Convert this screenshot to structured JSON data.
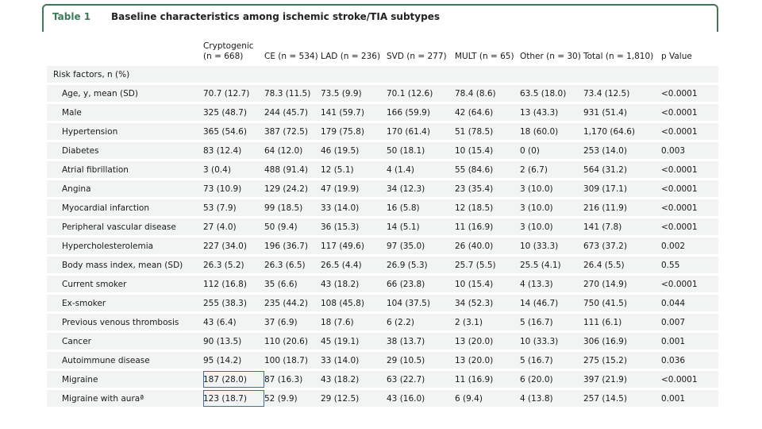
{
  "caption": {
    "label": "Table 1",
    "title": "Baseline characteristics among ischemic stroke/TIA subtypes"
  },
  "columns": [
    "",
    "Cryptogenic (n = 668)",
    "CE (n = 534)",
    "LAD (n = 236)",
    "SVD (n = 277)",
    "MULT (n = 65)",
    "Other (n = 30)",
    "Total (n = 1,810)",
    "p Value"
  ],
  "section_header": "Risk factors, n (%)",
  "rows": [
    [
      "Age, y, mean (SD)",
      "70.7 (12.7)",
      "78.3 (11.5)",
      "73.5 (9.9)",
      "70.1 (12.6)",
      "78.4 (8.6)",
      "63.5 (18.0)",
      "73.4 (12.5)",
      "<0.0001"
    ],
    [
      "Male",
      "325 (48.7)",
      "244 (45.7)",
      "141 (59.7)",
      "166 (59.9)",
      "42 (64.6)",
      "13 (43.3)",
      "931 (51.4)",
      "<0.0001"
    ],
    [
      "Hypertension",
      "365 (54.6)",
      "387 (72.5)",
      "179 (75.8)",
      "170 (61.4)",
      "51 (78.5)",
      "18 (60.0)",
      "1,170 (64.6)",
      "<0.0001"
    ],
    [
      "Diabetes",
      "83 (12.4)",
      "64 (12.0)",
      "46 (19.5)",
      "50 (18.1)",
      "10 (15.4)",
      "0 (0)",
      "253 (14.0)",
      "0.003"
    ],
    [
      "Atrial fibrillation",
      "3 (0.4)",
      "488 (91.4)",
      "12 (5.1)",
      "4 (1.4)",
      "55 (84.6)",
      "2 (6.7)",
      "564 (31.2)",
      "<0.0001"
    ],
    [
      "Angina",
      "73 (10.9)",
      "129 (24.2)",
      "47 (19.9)",
      "34 (12.3)",
      "23 (35.4)",
      "3 (10.0)",
      "309 (17.1)",
      "<0.0001"
    ],
    [
      "Myocardial infarction",
      "53 (7.9)",
      "99 (18.5)",
      "33 (14.0)",
      "16 (5.8)",
      "12 (18.5)",
      "3 (10.0)",
      "216 (11.9)",
      "<0.0001"
    ],
    [
      "Peripheral vascular disease",
      "27 (4.0)",
      "50 (9.4)",
      "36 (15.3)",
      "14 (5.1)",
      "11 (16.9)",
      "3 (10.0)",
      "141 (7.8)",
      "<0.0001"
    ],
    [
      "Hypercholesterolemia",
      "227 (34.0)",
      "196 (36.7)",
      "117 (49.6)",
      "97 (35.0)",
      "26 (40.0)",
      "10 (33.3)",
      "673 (37.2)",
      "0.002"
    ],
    [
      "Body mass index, mean (SD)",
      "26.3 (5.2)",
      "26.3 (6.5)",
      "26.5 (4.4)",
      "26.9 (5.3)",
      "25.7 (5.5)",
      "25.5 (4.1)",
      "26.4 (5.5)",
      "0.55"
    ],
    [
      "Current smoker",
      "112 (16.8)",
      "35 (6.6)",
      "43 (18.2)",
      "66 (23.8)",
      "10 (15.4)",
      "4 (13.3)",
      "270 (14.9)",
      "<0.0001"
    ],
    [
      "Ex-smoker",
      "255 (38.3)",
      "235 (44.2)",
      "108 (45.8)",
      "104 (37.5)",
      "34 (52.3)",
      "14 (46.7)",
      "750 (41.5)",
      "0.044"
    ],
    [
      "Previous venous thrombosis",
      "43 (6.4)",
      "37 (6.9)",
      "18 (7.6)",
      "6 (2.2)",
      "2 (3.1)",
      "5 (16.7)",
      "111 (6.1)",
      "0.007"
    ],
    [
      "Cancer",
      "90 (13.5)",
      "110 (20.6)",
      "45 (19.1)",
      "38 (13.7)",
      "13 (20.0)",
      "10 (33.3)",
      "306 (16.9)",
      "0.001"
    ],
    [
      "Autoimmune disease",
      "95 (14.2)",
      "100 (18.7)",
      "33 (14.0)",
      "29 (10.5)",
      "13 (20.0)",
      "5 (16.7)",
      "275 (15.2)",
      "0.036"
    ],
    [
      "Migraine",
      "187 (28.0)",
      "87 (16.3)",
      "43 (18.2)",
      "63 (22.7)",
      "11 (16.9)",
      "6 (20.0)",
      "397 (21.9)",
      "<0.0001"
    ],
    [
      "Migraine with auraª",
      "123 (18.7)",
      "52 (9.9)",
      "29 (12.5)",
      "43 (16.0)",
      "6 (9.4)",
      "4 (13.8)",
      "257 (14.5)",
      "0.001"
    ]
  ],
  "highlight": {
    "rows": [
      15,
      16
    ],
    "col": 1,
    "color": "#3d6fa5"
  },
  "colors": {
    "accent": "#3c7a59",
    "row_bg": "#f2f3f3"
  }
}
